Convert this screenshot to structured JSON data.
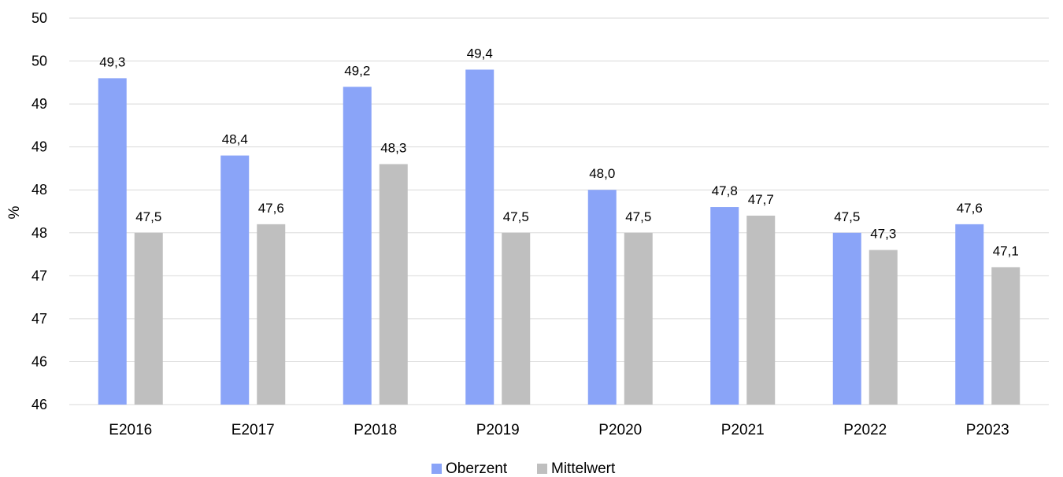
{
  "chart_data": {
    "type": "bar",
    "categories": [
      "E2016",
      "E2017",
      "P2018",
      "P2019",
      "P2020",
      "P2021",
      "P2022",
      "P2023"
    ],
    "series": [
      {
        "name": "Oberzent",
        "color": "#8aa4f8",
        "values": [
          49.3,
          48.4,
          49.2,
          49.4,
          48.0,
          47.8,
          47.5,
          47.6
        ],
        "labels": [
          "49,3",
          "48,4",
          "49,2",
          "49,4",
          "48,0",
          "47,8",
          "47,5",
          "47,6"
        ]
      },
      {
        "name": "Mittelwert",
        "color": "#bfbfbf",
        "values": [
          47.5,
          47.6,
          48.3,
          47.5,
          47.5,
          47.7,
          47.3,
          47.1
        ],
        "labels": [
          "47,5",
          "47,6",
          "48,3",
          "47,5",
          "47,5",
          "47,7",
          "47,3",
          "47,1"
        ]
      }
    ],
    "ylabel": "%",
    "ylim": [
      45.5,
      50.0
    ],
    "y_ticks": [
      45.5,
      46.0,
      46.5,
      47.0,
      47.5,
      48.0,
      48.5,
      49.0,
      49.5,
      50.0
    ],
    "y_tick_labels": [
      "46",
      "46",
      "47",
      "47",
      "48",
      "48",
      "49",
      "49",
      "50",
      "50"
    ],
    "grid": true,
    "legend": "bottom-center",
    "gridline_color": "#d9d9d9"
  }
}
